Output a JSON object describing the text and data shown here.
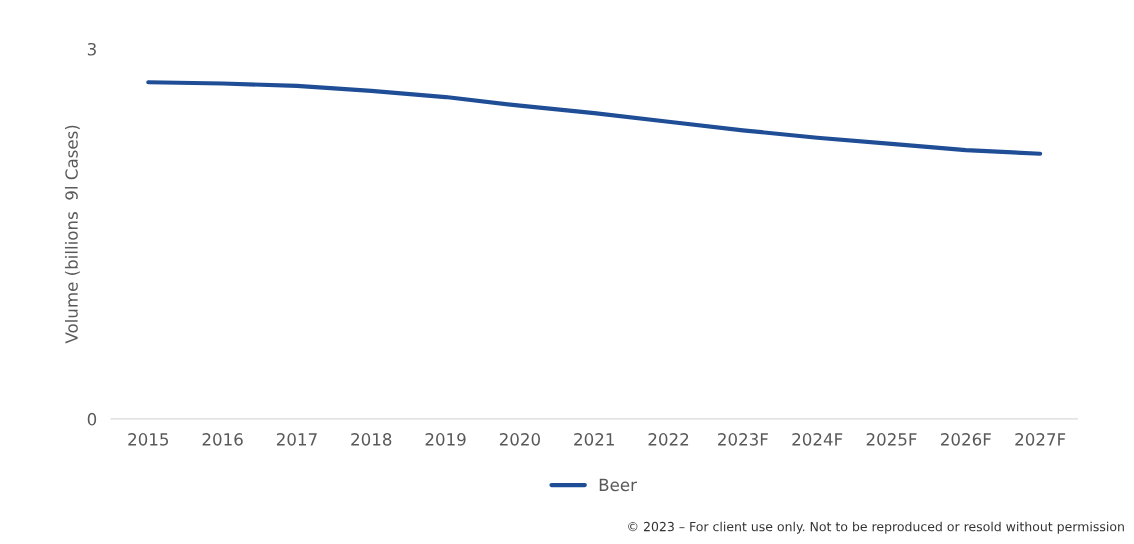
{
  "chart_data": {
    "type": "line",
    "ylabel": "Volume (billions  9l Cases)",
    "categories": [
      "2015",
      "2016",
      "2017",
      "2018",
      "2019",
      "2020",
      "2021",
      "2022",
      "2023F",
      "2024F",
      "2025F",
      "2026F",
      "2027F"
    ],
    "series": [
      {
        "name": "Beer",
        "color": "#1f4e96",
        "values": [
          2.73,
          2.72,
          2.7,
          2.66,
          2.61,
          2.54,
          2.48,
          2.41,
          2.34,
          2.28,
          2.23,
          2.18,
          2.15
        ]
      }
    ],
    "ylim": [
      0,
      3
    ],
    "yticks": [
      0,
      3
    ],
    "grid": false,
    "legend": "bottom",
    "marker": "none",
    "line_style": "solid",
    "annotations": [
      "© 2023 – For client use only. Not to be reproduced or resold without permission"
    ]
  }
}
